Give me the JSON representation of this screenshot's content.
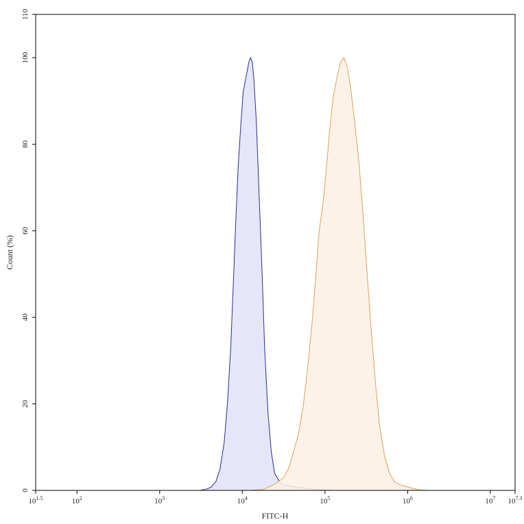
{
  "chart_data": {
    "type": "area",
    "xlabel": "FITC-H",
    "ylabel": "Count (%)",
    "x_scale": "log10",
    "xlim_exponent": [
      1.5,
      7.3
    ],
    "ylim": [
      0,
      110
    ],
    "x_ticks": [
      {
        "exp": 1.5,
        "base": "10",
        "sup": "1.5"
      },
      {
        "exp": 2,
        "base": "10",
        "sup": "2"
      },
      {
        "exp": 3,
        "base": "10",
        "sup": "3"
      },
      {
        "exp": 4,
        "base": "10",
        "sup": "4"
      },
      {
        "exp": 5,
        "base": "10",
        "sup": "5"
      },
      {
        "exp": 6,
        "base": "10",
        "sup": "6"
      },
      {
        "exp": 7,
        "base": "10",
        "sup": "7"
      },
      {
        "exp": 7.3,
        "base": "10",
        "sup": "7.3"
      }
    ],
    "y_ticks": [
      "0",
      "20",
      "40",
      "60",
      "80",
      "100",
      "110"
    ],
    "y_tick_values": [
      0,
      20,
      40,
      60,
      80,
      100,
      110
    ],
    "grid": false,
    "series": [
      {
        "stroke": "#2b2b8f",
        "fill": "#e6e6fa",
        "points": [
          [
            3.48,
            0
          ],
          [
            3.55,
            0.2
          ],
          [
            3.62,
            0.7
          ],
          [
            3.68,
            2
          ],
          [
            3.73,
            5
          ],
          [
            3.78,
            11
          ],
          [
            3.82,
            20
          ],
          [
            3.86,
            33
          ],
          [
            3.89,
            47
          ],
          [
            3.92,
            62
          ],
          [
            3.95,
            75
          ],
          [
            3.98,
            84
          ],
          [
            4.01,
            92
          ],
          [
            4.05,
            96
          ],
          [
            4.08,
            99
          ],
          [
            4.1,
            100
          ],
          [
            4.12,
            99
          ],
          [
            4.14,
            95
          ],
          [
            4.17,
            85
          ],
          [
            4.2,
            70
          ],
          [
            4.24,
            50
          ],
          [
            4.27,
            33
          ],
          [
            4.31,
            18
          ],
          [
            4.35,
            9
          ],
          [
            4.39,
            4
          ],
          [
            4.45,
            2
          ],
          [
            4.5,
            1.2
          ],
          [
            4.6,
            0.9
          ],
          [
            4.7,
            0.7
          ],
          [
            4.8,
            0.4
          ],
          [
            4.9,
            0.2
          ],
          [
            5.0,
            0.1
          ],
          [
            5.1,
            0
          ]
        ]
      },
      {
        "stroke": "#d9a060",
        "fill": "#fdf0e4",
        "points": [
          [
            4.1,
            0
          ],
          [
            4.25,
            0.2
          ],
          [
            4.4,
            1.5
          ],
          [
            4.5,
            3
          ],
          [
            4.56,
            5
          ],
          [
            4.62,
            9
          ],
          [
            4.68,
            13
          ],
          [
            4.74,
            20
          ],
          [
            4.8,
            30
          ],
          [
            4.85,
            40
          ],
          [
            4.89,
            50
          ],
          [
            4.93,
            60
          ],
          [
            4.98,
            67
          ],
          [
            5.02,
            75
          ],
          [
            5.06,
            84
          ],
          [
            5.1,
            91
          ],
          [
            5.15,
            96
          ],
          [
            5.19,
            99
          ],
          [
            5.23,
            100
          ],
          [
            5.27,
            98
          ],
          [
            5.31,
            93
          ],
          [
            5.36,
            85
          ],
          [
            5.41,
            76
          ],
          [
            5.46,
            64
          ],
          [
            5.51,
            50
          ],
          [
            5.56,
            37
          ],
          [
            5.61,
            25
          ],
          [
            5.66,
            15
          ],
          [
            5.72,
            8
          ],
          [
            5.78,
            4
          ],
          [
            5.84,
            2
          ],
          [
            5.92,
            1.2
          ],
          [
            6.0,
            0.8
          ],
          [
            6.08,
            0.4
          ],
          [
            6.15,
            0.1
          ],
          [
            6.25,
            0
          ]
        ]
      }
    ]
  }
}
